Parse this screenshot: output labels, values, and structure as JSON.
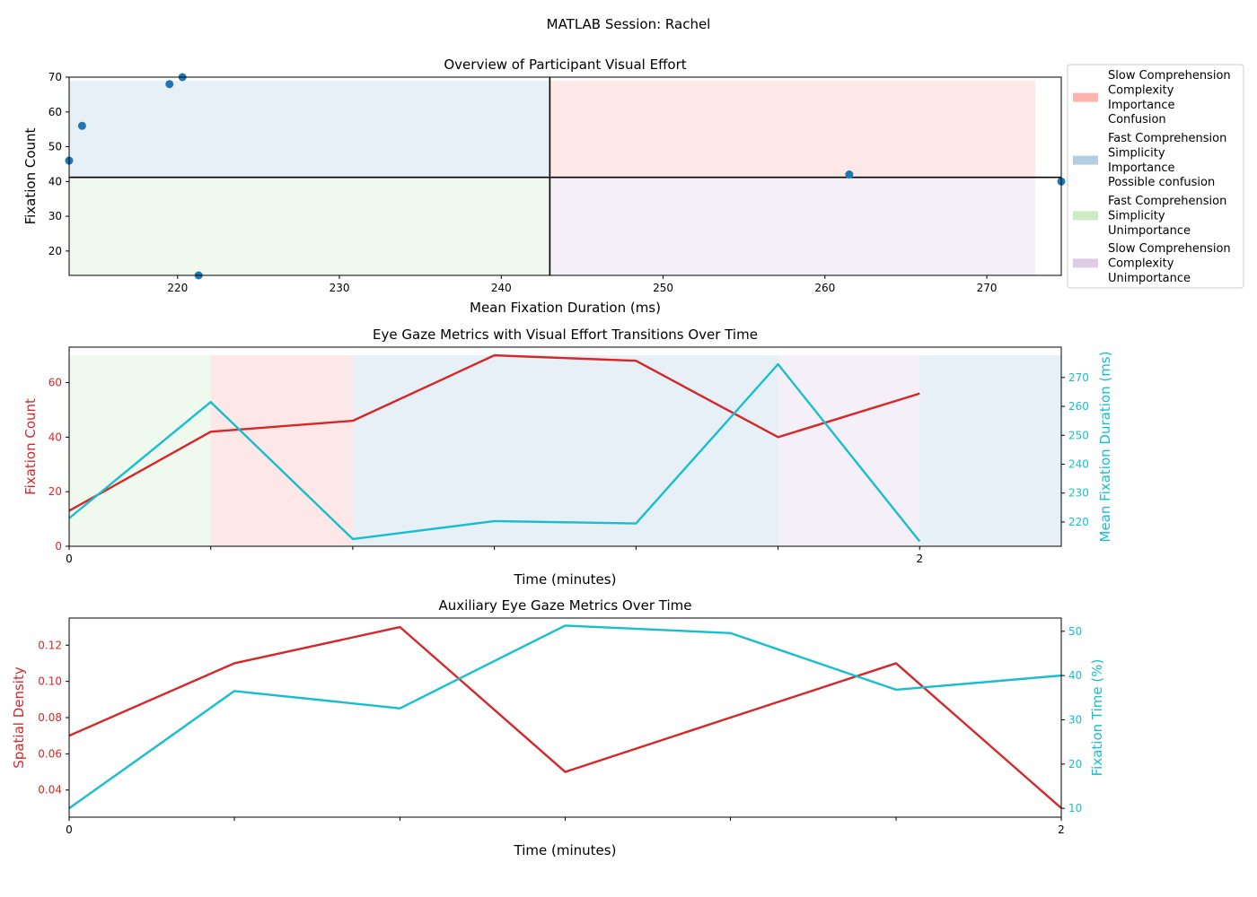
{
  "figure": {
    "suptitle": "MATLAB Session: Rachel"
  },
  "colors": {
    "slow_importance": "#fbb4ae",
    "fast_importance": "#b3cde3",
    "fast_unimportance": "#ccebc5",
    "slow_unimportance": "#decbe4",
    "fixation_count_line": "#d62728",
    "duration_line": "#17becf",
    "scatter_point": "#1f77b4",
    "threshold_line": "#000000"
  },
  "chart_data": [
    {
      "id": "overview",
      "type": "scatter",
      "title": "Overview of Participant Visual Effort",
      "xlabel": "Mean Fixation Duration (ms)",
      "ylabel": "Fixation Count",
      "xlim": [
        213.3,
        274.6
      ],
      "ylim": [
        13,
        70
      ],
      "xticks": [
        220,
        230,
        240,
        250,
        260,
        270
      ],
      "yticks": [
        20,
        30,
        40,
        50,
        60,
        70
      ],
      "points": [
        {
          "x": 213.3,
          "y": 46
        },
        {
          "x": 214.1,
          "y": 56
        },
        {
          "x": 219.5,
          "y": 68
        },
        {
          "x": 220.3,
          "y": 70
        },
        {
          "x": 221.3,
          "y": 13
        },
        {
          "x": 261.5,
          "y": 42
        },
        {
          "x": 274.6,
          "y": 40
        }
      ],
      "threshold_x": 243,
      "threshold_y": 41.2,
      "region_x_max": 273,
      "region_y_max": 69,
      "legend": [
        {
          "key": "slow_importance",
          "lines": [
            "Slow Comprehension",
            "Complexity",
            "Importance",
            "Confusion"
          ]
        },
        {
          "key": "fast_importance",
          "lines": [
            "Fast Comprehension",
            "Simplicity",
            "Importance",
            "Possible confusion"
          ]
        },
        {
          "key": "fast_unimportance",
          "lines": [
            "Fast Comprehension",
            "Simplicity",
            "Unimportance"
          ]
        },
        {
          "key": "slow_unimportance",
          "lines": [
            "Slow Comprehension",
            "Complexity",
            "Unimportance"
          ]
        }
      ]
    },
    {
      "id": "transitions",
      "type": "line",
      "title": "Eye Gaze Metrics with Visual Effort Transitions Over Time",
      "xlabel": "Time (minutes)",
      "ylabel_left": "Fixation Count",
      "ylabel_right": "Mean Fixation Duration (ms)",
      "xlim": [
        0,
        2.333
      ],
      "ylim_left": [
        0,
        73
      ],
      "ylim_right": [
        211.6,
        280.5
      ],
      "xticks": [
        0,
        0.333,
        0.667,
        1.0,
        1.333,
        1.667,
        2.0
      ],
      "xtick_labels": [
        "0",
        "",
        "",
        "",
        "",
        "",
        "2"
      ],
      "yticks_left": [
        0,
        20,
        40,
        60
      ],
      "yticks_right": [
        220,
        230,
        240,
        250,
        260,
        270
      ],
      "x": [
        0,
        0.333,
        0.667,
        1.0,
        1.333,
        1.667,
        2.0
      ],
      "series": [
        {
          "axis": "left",
          "color_key": "fixation_count_line",
          "values": [
            13,
            42,
            46,
            70,
            68,
            40,
            56
          ]
        },
        {
          "axis": "right",
          "color_key": "duration_line",
          "values": [
            221.3,
            261.5,
            214.1,
            220.3,
            219.5,
            274.6,
            213.3
          ]
        }
      ],
      "regions": [
        {
          "x0": 0,
          "x1": 0.333,
          "key": "fast_unimportance"
        },
        {
          "x0": 0.333,
          "x1": 0.667,
          "key": "slow_importance"
        },
        {
          "x0": 0.667,
          "x1": 1.667,
          "key": "fast_importance"
        },
        {
          "x0": 1.667,
          "x1": 2.0,
          "key": "slow_unimportance"
        },
        {
          "x0": 2.0,
          "x1": 2.333,
          "key": "fast_importance"
        }
      ],
      "region_y_max": 70
    },
    {
      "id": "auxiliary",
      "type": "line",
      "title": "Auxiliary Eye Gaze Metrics Over Time",
      "xlabel": "Time (minutes)",
      "ylabel_left": "Spatial Density",
      "ylabel_right": "Fixation Time (%)",
      "xlim": [
        0,
        2
      ],
      "ylim_left": [
        0.025,
        0.135
      ],
      "ylim_right": [
        8,
        53
      ],
      "xticks": [
        0,
        0.333,
        0.667,
        1.0,
        1.333,
        1.667,
        2.0
      ],
      "xtick_labels": [
        "0",
        "",
        "",
        "",
        "",
        "",
        "2"
      ],
      "yticks_left": [
        0.04,
        0.06,
        0.08,
        0.1,
        0.12
      ],
      "ytick_labels_left": [
        "0.04",
        "0.06",
        "0.08",
        "0.10",
        "0.12"
      ],
      "yticks_right": [
        10,
        20,
        30,
        40,
        50
      ],
      "x": [
        0,
        0.333,
        0.667,
        1.0,
        1.333,
        1.667,
        2.0
      ],
      "series": [
        {
          "axis": "left",
          "color_key": "fixation_count_line",
          "values": [
            0.07,
            0.11,
            0.13,
            0.05,
            0.08,
            0.11,
            0.03
          ]
        },
        {
          "axis": "right",
          "color_key": "duration_line",
          "values": [
            10,
            36.5,
            32.6,
            51.3,
            49.6,
            36.8,
            40
          ]
        }
      ]
    }
  ]
}
